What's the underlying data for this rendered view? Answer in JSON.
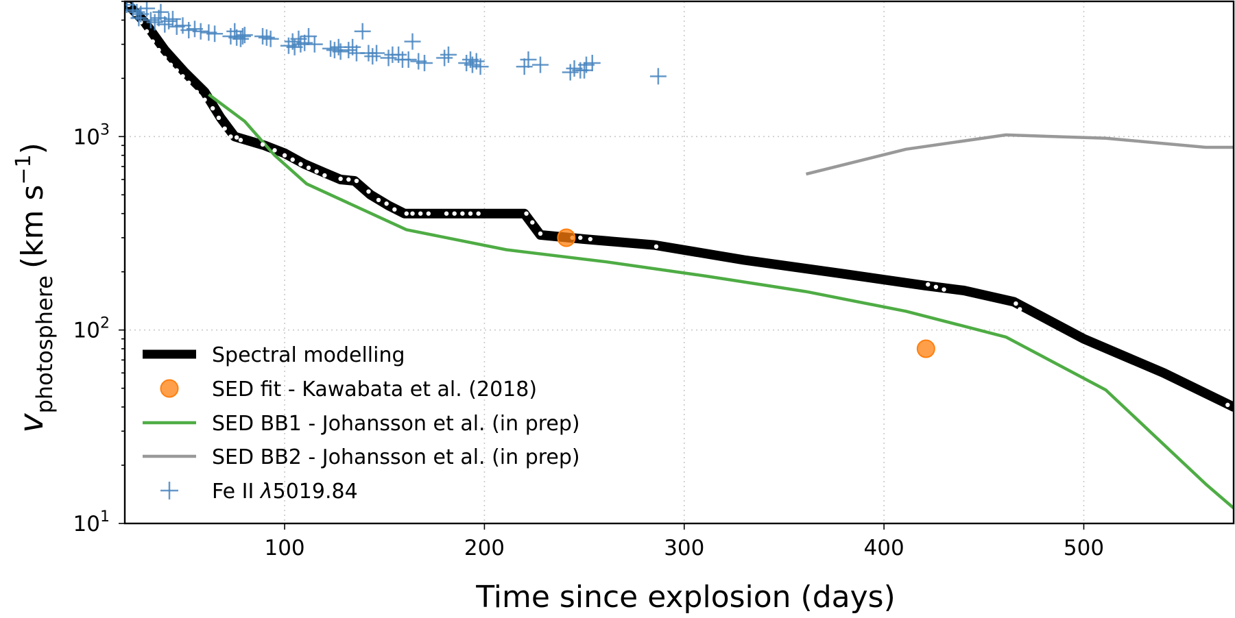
{
  "chart_data": {
    "type": "line",
    "xlabel": "Time since explosion (days)",
    "ylabel_main": "v",
    "ylabel_sub": "photosphere",
    "ylabel_units": "(km s",
    "ylabel_units_exp": "−1",
    "ylabel_units_close": ")",
    "xlim": [
      20,
      575
    ],
    "ylim": [
      10,
      5000
    ],
    "yscale": "log",
    "xticks": [
      100,
      200,
      300,
      400,
      500
    ],
    "xtick_labels": [
      "100",
      "200",
      "300",
      "400",
      "500"
    ],
    "yticks": [
      10,
      100,
      1000
    ],
    "ytick_base": "10",
    "ytick_exps": [
      "1",
      "2",
      "3"
    ],
    "grid": true,
    "legend_position": "lower-left",
    "series": [
      {
        "name": "Spectral modelling",
        "style": "thick-line-with-dots",
        "color": "#000000",
        "x": [
          20,
          30,
          40,
          50,
          60,
          68,
          75,
          90,
          100,
          110,
          120,
          128,
          135,
          143,
          152,
          160,
          175,
          200,
          220,
          228,
          250,
          285,
          330,
          380,
          420,
          440,
          465,
          500,
          540,
          575
        ],
        "y": [
          5000,
          3900,
          2800,
          2150,
          1700,
          1250,
          1000,
          900,
          820,
          720,
          650,
          600,
          590,
          500,
          440,
          400,
          400,
          400,
          400,
          310,
          295,
          275,
          230,
          195,
          170,
          160,
          140,
          90,
          60,
          40
        ],
        "dots_x": [
          22,
          25,
          28,
          31,
          34,
          37,
          40,
          43,
          46,
          49,
          52,
          56,
          60,
          64,
          67,
          70,
          73,
          76,
          78,
          89,
          95,
          100,
          104,
          108,
          112,
          116,
          120,
          128,
          132,
          136,
          142,
          147,
          151,
          155,
          161,
          164,
          168,
          172,
          181,
          185,
          189,
          193,
          197,
          221,
          224,
          228,
          244,
          248,
          253,
          286,
          422,
          426,
          430,
          466,
          468,
          572
        ],
        "dots_y": [
          4800,
          4300,
          3900,
          3500,
          3100,
          2800,
          2550,
          2350,
          2200,
          2050,
          1900,
          1700,
          1550,
          1400,
          1250,
          1100,
          1000,
          990,
          960,
          910,
          850,
          800,
          760,
          720,
          690,
          660,
          630,
          605,
          600,
          590,
          520,
          470,
          450,
          420,
          400,
          400,
          400,
          400,
          400,
          400,
          400,
          400,
          400,
          400,
          360,
          315,
          300,
          300,
          295,
          270,
          172,
          167,
          162,
          137,
          128,
          41
        ]
      },
      {
        "name": "SED fit - Kawabata et al. (2018)",
        "style": "markers-circle",
        "color": "#ff7f0e",
        "x": [
          241,
          421
        ],
        "y": [
          300,
          80
        ]
      },
      {
        "name": "SED BB1 - Johansson et al. (in prep)",
        "style": "line",
        "color": "#4eac44",
        "x": [
          62,
          80,
          95,
          111,
          161,
          211,
          261,
          311,
          361,
          411,
          461,
          511,
          561,
          575
        ],
        "y": [
          1650,
          1200,
          800,
          570,
          330,
          260,
          225,
          190,
          158,
          125,
          92,
          49,
          16,
          12
        ]
      },
      {
        "name": "SED BB2 - Johansson et al. (in prep)",
        "style": "line",
        "color": "#999999",
        "x": [
          361,
          411,
          461,
          511,
          561,
          575
        ],
        "y": [
          640,
          860,
          1020,
          980,
          880,
          880
        ]
      },
      {
        "name": "Fe II λ5019.84",
        "name_prefix": "Fe II ",
        "name_lambda": "λ",
        "name_suffix": "5019.84",
        "style": "markers-plus",
        "color": "#4a86c0",
        "x": [
          21,
          24,
          26,
          27,
          28,
          31,
          33,
          35,
          37,
          38,
          40,
          42,
          44,
          46,
          49,
          52,
          55,
          58,
          62,
          65,
          73,
          75,
          76,
          78,
          79,
          80,
          89,
          91,
          93,
          102,
          104,
          105,
          107,
          108,
          110,
          112,
          115,
          123,
          125,
          127,
          128,
          132,
          134,
          136,
          139,
          142,
          144,
          146,
          152,
          154,
          157,
          159,
          162,
          164,
          167,
          170,
          180,
          182,
          191,
          193,
          194,
          196,
          198,
          220,
          222,
          228,
          243,
          245,
          248,
          250,
          251,
          254,
          287
        ],
        "y": [
          4800,
          4500,
          4400,
          4100,
          4300,
          4600,
          4000,
          3900,
          4100,
          4400,
          3800,
          3950,
          4050,
          3700,
          3750,
          3550,
          3600,
          3500,
          3450,
          3400,
          3300,
          3500,
          3250,
          3200,
          3300,
          3350,
          3300,
          3250,
          3200,
          2950,
          3100,
          2900,
          3200,
          3000,
          3050,
          3300,
          3000,
          2850,
          2800,
          2900,
          2750,
          2800,
          2900,
          2700,
          3500,
          2700,
          2600,
          2700,
          2550,
          2650,
          2650,
          2500,
          2500,
          3100,
          2450,
          2400,
          2550,
          2650,
          2400,
          2500,
          2350,
          2450,
          2300,
          2300,
          2500,
          2350,
          2150,
          2250,
          2200,
          2200,
          2350,
          2400,
          2050
        ]
      }
    ]
  }
}
